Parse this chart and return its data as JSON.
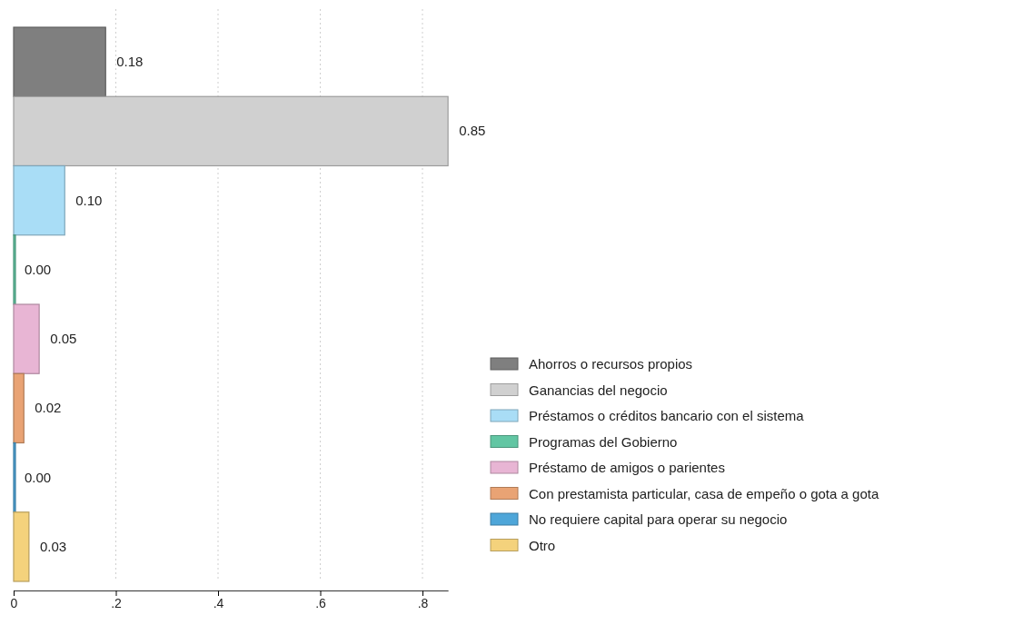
{
  "chart_data": {
    "type": "bar",
    "orientation": "horizontal",
    "categories": [
      null
    ],
    "series": [
      {
        "name": "Ahorros o recursos propios",
        "color": "#7f7f7f",
        "values": [
          0.18
        ],
        "value_labels": [
          "0.18"
        ]
      },
      {
        "name": "Ganancias del negocio",
        "color": "#d0d0d0",
        "values": [
          0.85
        ],
        "value_labels": [
          "0.85"
        ]
      },
      {
        "name": "Préstamos o créditos bancario con el sistema",
        "color": "#a9ddf6",
        "values": [
          0.1
        ],
        "value_labels": [
          "0.10"
        ]
      },
      {
        "name": "Programas del Gobierno",
        "color": "#62c6a3",
        "values": [
          0.0
        ],
        "value_labels": [
          "0.00"
        ]
      },
      {
        "name": "Préstamo de amigos o parientes",
        "color": "#e8b5d4",
        "values": [
          0.05
        ],
        "value_labels": [
          "0.05"
        ]
      },
      {
        "name": "Con prestamista particular, casa de empeño o gota a gota",
        "color": "#e9a374",
        "values": [
          0.02
        ],
        "value_labels": [
          "0.02"
        ]
      },
      {
        "name": "No requiere capital para operar su negocio",
        "color": "#4ea6d9",
        "values": [
          0.0
        ],
        "value_labels": [
          "0.00"
        ]
      },
      {
        "name": "Otro",
        "color": "#f4d27c",
        "values": [
          0.03
        ],
        "value_labels": [
          "0.03"
        ]
      }
    ],
    "xlim": [
      0,
      0.85
    ],
    "xticks": [
      0,
      {
        "value": 0.2,
        "label": ".2"
      },
      {
        "value": 0.4,
        "label": ".4"
      },
      {
        "value": 0.6,
        "label": ".6"
      },
      {
        "value": 0.8,
        "label": ".8"
      }
    ],
    "grid": "x",
    "legend": "right"
  }
}
